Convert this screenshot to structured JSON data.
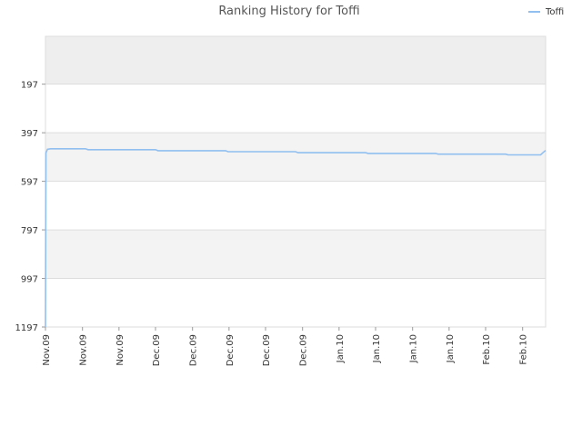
{
  "chart_data": {
    "type": "line",
    "title": "Ranking History for Toffi",
    "xlabel": "",
    "ylabel": "",
    "y_inverted": true,
    "ylim": [
      1197,
      0
    ],
    "y_ticks": [
      197,
      397,
      597,
      797,
      997,
      1197
    ],
    "x_ticks": [
      "Nov.09",
      "Nov.09",
      "Nov.09",
      "Dec.09",
      "Dec.09",
      "Dec.09",
      "Dec.09",
      "Dec.09",
      "Jan.10",
      "Jan.10",
      "Jan.10",
      "Jan.10",
      "Feb.10",
      "Feb.10"
    ],
    "x_tick_fractions": [
      0.0,
      0.074,
      0.147,
      0.22,
      0.294,
      0.367,
      0.44,
      0.514,
      0.587,
      0.66,
      0.734,
      0.807,
      0.88,
      0.954
    ],
    "legend": {
      "position": "top-right",
      "entries": [
        "Toffi"
      ]
    },
    "grid": true,
    "band_colors": [
      "#eeeeee",
      "#ffffff",
      "#f3f3f3",
      "#ffffff",
      "#f3f3f3",
      "#ffffff"
    ],
    "series": [
      {
        "name": "Toffi",
        "color": "#90bff0",
        "points": [
          [
            0.0,
            1197
          ],
          [
            0.001,
            480
          ],
          [
            0.004,
            465
          ],
          [
            0.01,
            463
          ],
          [
            0.08,
            463
          ],
          [
            0.085,
            467
          ],
          [
            0.22,
            467
          ],
          [
            0.225,
            471
          ],
          [
            0.36,
            471
          ],
          [
            0.365,
            475
          ],
          [
            0.5,
            475
          ],
          [
            0.505,
            479
          ],
          [
            0.64,
            479
          ],
          [
            0.645,
            482
          ],
          [
            0.78,
            482
          ],
          [
            0.785,
            485
          ],
          [
            0.92,
            485
          ],
          [
            0.925,
            488
          ],
          [
            0.99,
            488
          ],
          [
            0.995,
            478
          ],
          [
            1.0,
            470
          ]
        ]
      }
    ]
  }
}
